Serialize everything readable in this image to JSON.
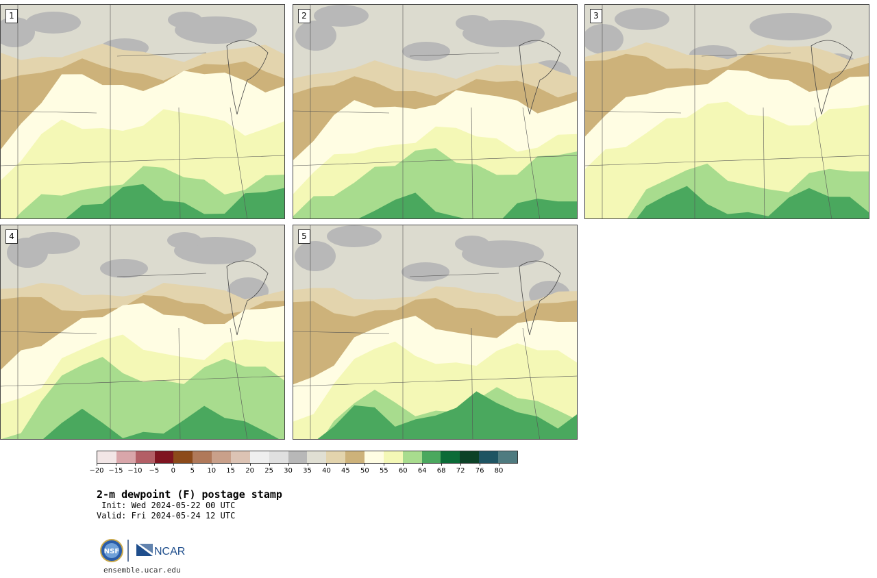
{
  "panels": [
    {
      "label": "1"
    },
    {
      "label": "2"
    },
    {
      "label": "3"
    },
    {
      "label": "4"
    },
    {
      "label": "5"
    }
  ],
  "colorbar": {
    "colors": [
      "#f2e6e6",
      "#d9a6aa",
      "#b35f66",
      "#7f1420",
      "#8c4a1a",
      "#b0795a",
      "#c9a08a",
      "#dcc3b4",
      "#efefef",
      "#e0e0e0",
      "#b8b8b8",
      "#e0dfd3",
      "#e3d4ad",
      "#cdb27a",
      "#fffde3",
      "#f4f8b6",
      "#a8dc8e",
      "#4aa85e",
      "#0b6b37",
      "#0c4227",
      "#1e5462",
      "#4f7b80"
    ],
    "ticks": [
      "−20",
      "−15",
      "−10",
      "−5",
      "0",
      "5",
      "10",
      "15",
      "20",
      "25",
      "30",
      "35",
      "40",
      "45",
      "50",
      "55",
      "60",
      "64",
      "68",
      "72",
      "76",
      "80"
    ]
  },
  "title": "2-m dewpoint (F) postage stamp",
  "init_line": " Init: Wed 2024-05-22 00 UTC",
  "valid_line": "Valid: Fri 2024-05-24 12 UTC",
  "logo": {
    "nsf_text": "NSF",
    "ncar_text": "NCAR"
  },
  "url": "ensemble.ucar.edu"
}
